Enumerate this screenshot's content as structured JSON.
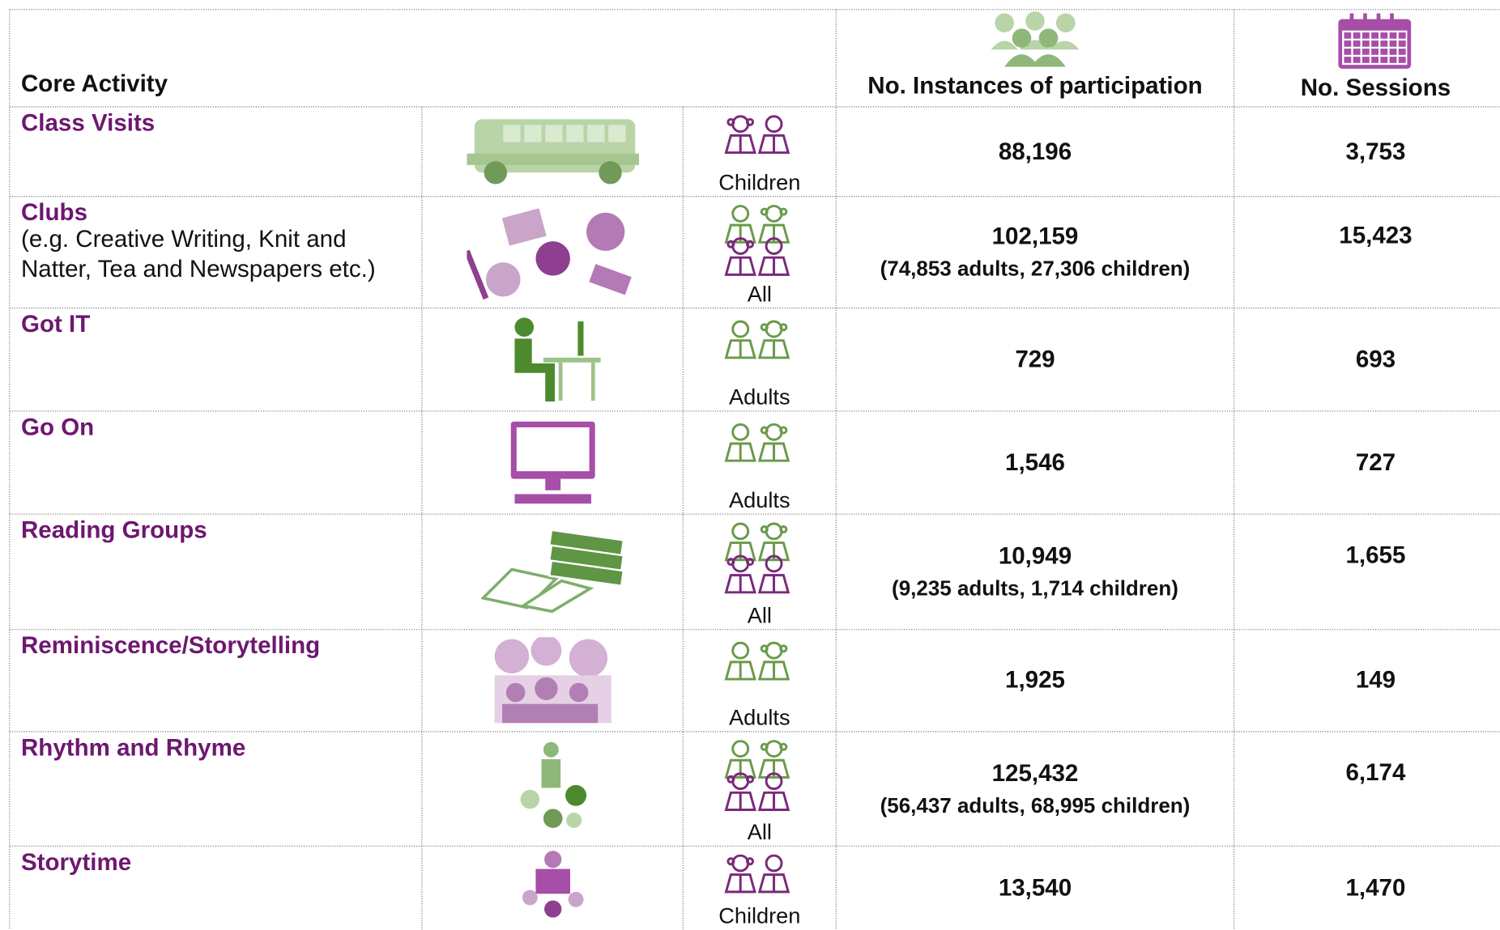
{
  "table": {
    "headers": [
      "Core Activity",
      "No. Instances of participation",
      "No. Sessions"
    ],
    "rows": [
      {
        "name": "Class Visits",
        "audience": "Children",
        "instances": "88,196",
        "sessions": "3,753"
      },
      {
        "name": "Clubs",
        "description": [
          "(e.g. Creative Writing, Knit and",
          "Natter, Tea and Newspapers etc.)"
        ],
        "audience": "All",
        "instances": "102,159",
        "breakdown": "(74,853 adults, 27,306 children)",
        "sessions": "15,423"
      },
      {
        "name": "Got IT",
        "audience": "Adults",
        "instances": "729",
        "sessions": "693"
      },
      {
        "name": "Go On",
        "audience": "Adults",
        "instances": "1,546",
        "sessions": "727"
      },
      {
        "name": "Reading Groups",
        "audience": "All",
        "instances": "10,949",
        "breakdown": "(9,235 adults, 1,714 children)",
        "sessions": "1,655"
      },
      {
        "name": "Reminiscence/Storytelling",
        "audience": "Adults",
        "instances": "1,925",
        "sessions": "149"
      },
      {
        "name": "Rhythm and Rhyme",
        "audience": "All",
        "instances": "125,432",
        "breakdown": "(56,437 adults, 68,995 children)",
        "sessions": "6,174"
      },
      {
        "name": "Storytime",
        "audience": "Children",
        "instances": "13,540",
        "sessions": "1,470"
      }
    ]
  }
}
